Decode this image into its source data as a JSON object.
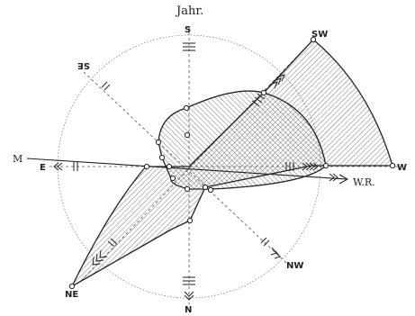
{
  "figure": {
    "title": "Jahr.",
    "compass": {
      "top": "S",
      "bottom": "N",
      "left": "E",
      "right": "W",
      "upper_left": "SE",
      "upper_right": "SW",
      "lower_left": "NE",
      "lower_right": "NW"
    },
    "resultant_labels": {
      "left": "M",
      "right": "W.R."
    },
    "colors": {
      "ink": "#222222",
      "hatch": "#333333",
      "background": "#ffffff"
    }
  }
}
